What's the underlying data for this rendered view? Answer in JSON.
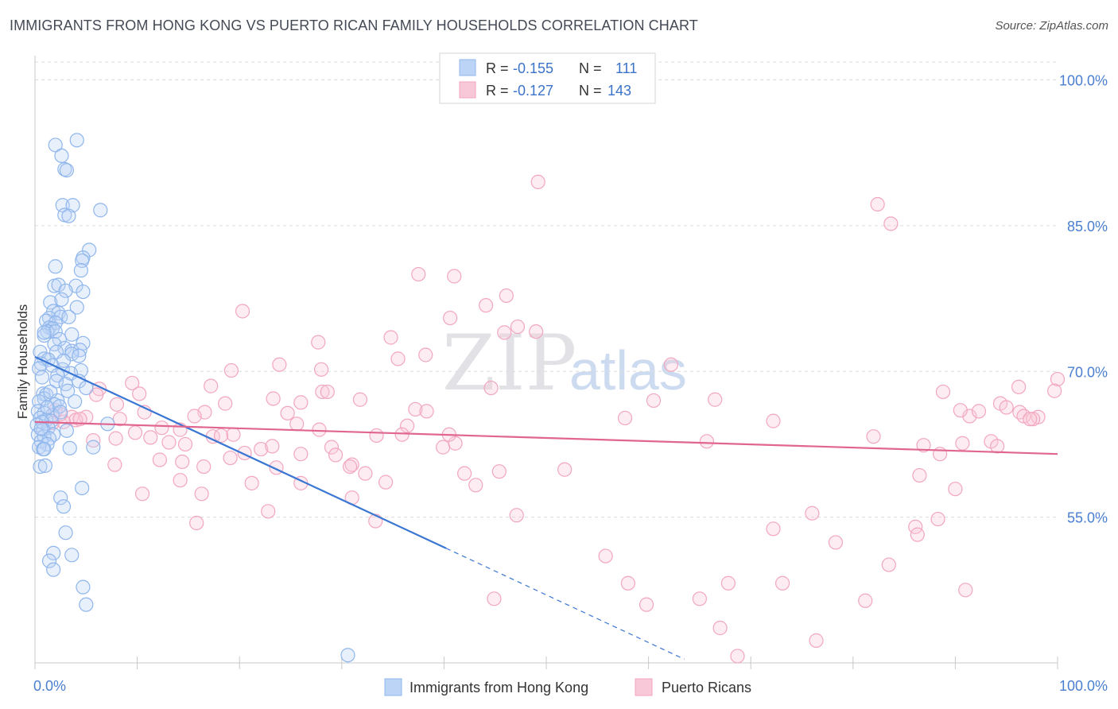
{
  "header": {
    "title": "IMMIGRANTS FROM HONG KONG VS PUERTO RICAN FAMILY HOUSEHOLDS CORRELATION CHART",
    "source": "Source: ZipAtlas.com"
  },
  "watermark": {
    "zip": "ZIP",
    "atlas": "atlas"
  },
  "legend": {
    "rows": [
      {
        "r_label": "R =",
        "r_value": "-0.155",
        "n_label": "N =",
        "n_value": "111",
        "color": "#8fb6ec"
      },
      {
        "r_label": "R =",
        "r_value": "-0.127",
        "n_label": "N =",
        "n_value": "143",
        "color": "#f2a6c0"
      }
    ]
  },
  "bottom_legend": {
    "items": [
      {
        "label": "Immigrants from Hong Kong",
        "color": "#8fb6ec"
      },
      {
        "label": "Puerto Ricans",
        "color": "#f2a6c0"
      }
    ]
  },
  "chart_data": {
    "type": "scatter",
    "ylabel": "Family Households",
    "xlabel": "",
    "xlim": [
      0,
      100
    ],
    "ylim": [
      40,
      102.5
    ],
    "x_tick_labels": [
      "0.0%",
      "100.0%"
    ],
    "y_ticks": [
      55,
      70,
      85,
      100
    ],
    "y_tick_labels": [
      "55.0%",
      "70.0%",
      "85.0%",
      "100.0%"
    ],
    "grid": true,
    "legend_position": "top-center",
    "series": [
      {
        "name": "Immigrants from Hong Kong",
        "color": "#8fb6ec",
        "line_color": "#3a76d3",
        "trend": {
          "x0": 0,
          "y0": 71.5,
          "x1": 40.2,
          "y1": 51.8,
          "dash_to_x": 63.5
        },
        "points": [
          [
            2.0,
            93.3
          ],
          [
            4.1,
            93.8
          ],
          [
            2.6,
            92.2
          ],
          [
            2.9,
            90.8
          ],
          [
            3.1,
            90.7
          ],
          [
            2.7,
            87.1
          ],
          [
            3.7,
            87.1
          ],
          [
            2.9,
            86.1
          ],
          [
            3.3,
            86.0
          ],
          [
            6.4,
            86.6
          ],
          [
            5.3,
            82.5
          ],
          [
            4.7,
            81.7
          ],
          [
            4.6,
            81.4
          ],
          [
            2.0,
            80.8
          ],
          [
            4.5,
            80.4
          ],
          [
            1.9,
            78.8
          ],
          [
            2.3,
            78.9
          ],
          [
            4.0,
            78.8
          ],
          [
            3.0,
            78.3
          ],
          [
            4.7,
            78.2
          ],
          [
            1.5,
            77.1
          ],
          [
            2.6,
            77.4
          ],
          [
            4.1,
            76.6
          ],
          [
            1.8,
            76.2
          ],
          [
            2.3,
            76.0
          ],
          [
            1.4,
            75.5
          ],
          [
            2.5,
            75.6
          ],
          [
            3.3,
            75.6
          ],
          [
            1.1,
            75.2
          ],
          [
            2.0,
            75.0
          ],
          [
            1.4,
            74.5
          ],
          [
            1.7,
            74.4
          ],
          [
            1.2,
            74.1
          ],
          [
            2.0,
            74.1
          ],
          [
            3.6,
            73.8
          ],
          [
            0.9,
            73.7
          ],
          [
            2.4,
            73.3
          ],
          [
            4.7,
            72.9
          ],
          [
            1.9,
            72.8
          ],
          [
            2.9,
            72.4
          ],
          [
            0.5,
            72.0
          ],
          [
            3.6,
            72.1
          ],
          [
            4.4,
            72.2
          ],
          [
            2.1,
            72.0
          ],
          [
            3.6,
            71.8
          ],
          [
            4.3,
            71.6
          ],
          [
            0.9,
            71.3
          ],
          [
            1.3,
            71.2
          ],
          [
            0.6,
            70.8
          ],
          [
            1.7,
            70.6
          ],
          [
            0.4,
            70.3
          ],
          [
            2.7,
            70.2
          ],
          [
            4.5,
            70.1
          ],
          [
            3.5,
            69.8
          ],
          [
            2.2,
            69.6
          ],
          [
            0.7,
            69.4
          ],
          [
            2.1,
            69.0
          ],
          [
            4.3,
            69.0
          ],
          [
            3.0,
            68.7
          ],
          [
            5.0,
            68.3
          ],
          [
            3.2,
            68.0
          ],
          [
            0.8,
            67.7
          ],
          [
            1.1,
            67.6
          ],
          [
            0.9,
            67.2
          ],
          [
            2.2,
            67.0
          ],
          [
            0.4,
            66.9
          ],
          [
            1.9,
            66.6
          ],
          [
            2.4,
            66.4
          ],
          [
            0.3,
            65.9
          ],
          [
            0.9,
            65.7
          ],
          [
            1.7,
            65.5
          ],
          [
            0.5,
            65.2
          ],
          [
            1.1,
            65.0
          ],
          [
            1.6,
            64.9
          ],
          [
            0.7,
            64.8
          ],
          [
            0.2,
            64.5
          ],
          [
            7.1,
            64.6
          ],
          [
            1.3,
            64.2
          ],
          [
            0.8,
            64.0
          ],
          [
            3.1,
            63.9
          ],
          [
            1.8,
            63.5
          ],
          [
            0.3,
            63.5
          ],
          [
            0.9,
            63.3
          ],
          [
            1.4,
            63.1
          ],
          [
            0.6,
            62.8
          ],
          [
            1.2,
            62.5
          ],
          [
            0.4,
            62.2
          ],
          [
            0.8,
            62.0
          ],
          [
            3.4,
            62.1
          ],
          [
            5.7,
            62.2
          ],
          [
            0.9,
            62.0
          ],
          [
            0.5,
            60.2
          ],
          [
            1.0,
            60.3
          ],
          [
            4.6,
            58.0
          ],
          [
            2.5,
            57.0
          ],
          [
            2.8,
            56.1
          ],
          [
            3.0,
            53.4
          ],
          [
            1.8,
            51.3
          ],
          [
            3.6,
            51.1
          ],
          [
            1.4,
            50.5
          ],
          [
            1.8,
            49.6
          ],
          [
            4.7,
            47.8
          ],
          [
            5.0,
            46.0
          ],
          [
            30.6,
            40.8
          ],
          [
            1.2,
            66.3
          ],
          [
            2.5,
            65.8
          ],
          [
            0.6,
            64.1
          ],
          [
            3.9,
            66.9
          ],
          [
            1.5,
            67.9
          ],
          [
            2.8,
            71.1
          ],
          [
            0.9,
            74.0
          ]
        ]
      },
      {
        "name": "Puerto Ricans",
        "color": "#f2a6c0",
        "line_color": "#e0668f",
        "trend": {
          "x0": 0,
          "y0": 64.8,
          "x1": 100,
          "y1": 61.5
        },
        "points": [
          [
            49.2,
            89.5
          ],
          [
            82.4,
            87.2
          ],
          [
            83.7,
            85.2
          ],
          [
            37.5,
            80.0
          ],
          [
            41.0,
            79.8
          ],
          [
            46.1,
            77.8
          ],
          [
            44.1,
            76.8
          ],
          [
            20.3,
            76.2
          ],
          [
            40.6,
            75.5
          ],
          [
            47.2,
            74.6
          ],
          [
            45.9,
            74.0
          ],
          [
            49.0,
            74.1
          ],
          [
            34.8,
            73.5
          ],
          [
            27.7,
            73.0
          ],
          [
            38.2,
            71.7
          ],
          [
            35.5,
            71.3
          ],
          [
            23.9,
            70.7
          ],
          [
            62.2,
            70.7
          ],
          [
            19.2,
            70.1
          ],
          [
            28.0,
            70.2
          ],
          [
            9.5,
            68.8
          ],
          [
            17.2,
            68.5
          ],
          [
            6.3,
            68.2
          ],
          [
            28.1,
            67.9
          ],
          [
            28.6,
            67.9
          ],
          [
            10.2,
            67.7
          ],
          [
            44.6,
            68.3
          ],
          [
            31.8,
            67.1
          ],
          [
            23.3,
            67.2
          ],
          [
            26.0,
            66.8
          ],
          [
            8.0,
            66.6
          ],
          [
            18.6,
            66.7
          ],
          [
            60.5,
            67.0
          ],
          [
            66.5,
            67.1
          ],
          [
            94.4,
            66.7
          ],
          [
            37.2,
            66.1
          ],
          [
            38.3,
            65.9
          ],
          [
            10.7,
            65.8
          ],
          [
            16.6,
            65.8
          ],
          [
            24.7,
            65.7
          ],
          [
            15.6,
            65.4
          ],
          [
            3.6,
            65.3
          ],
          [
            5.0,
            65.3
          ],
          [
            4.0,
            65.0
          ],
          [
            8.3,
            65.1
          ],
          [
            2.8,
            64.8
          ],
          [
            1.7,
            64.7
          ],
          [
            2.5,
            65.6
          ],
          [
            4.4,
            65.1
          ],
          [
            25.6,
            64.6
          ],
          [
            36.4,
            64.4
          ],
          [
            57.7,
            65.2
          ],
          [
            72.2,
            64.9
          ],
          [
            91.4,
            65.4
          ],
          [
            96.3,
            65.8
          ],
          [
            96.7,
            65.4
          ],
          [
            98.1,
            65.3
          ],
          [
            97.6,
            65.1
          ],
          [
            12.4,
            64.2
          ],
          [
            14.2,
            64.0
          ],
          [
            19.4,
            63.5
          ],
          [
            17.4,
            63.3
          ],
          [
            9.8,
            63.7
          ],
          [
            11.3,
            63.2
          ],
          [
            7.9,
            63.1
          ],
          [
            5.7,
            62.9
          ],
          [
            14.7,
            62.5
          ],
          [
            13.1,
            62.7
          ],
          [
            22.1,
            62.0
          ],
          [
            23.2,
            62.3
          ],
          [
            29.0,
            62.2
          ],
          [
            33.4,
            63.4
          ],
          [
            35.9,
            63.5
          ],
          [
            39.9,
            62.2
          ],
          [
            41.1,
            62.6
          ],
          [
            65.7,
            62.8
          ],
          [
            82.0,
            63.3
          ],
          [
            86.9,
            62.4
          ],
          [
            90.7,
            62.6
          ],
          [
            93.5,
            62.8
          ],
          [
            94.1,
            62.3
          ],
          [
            88.5,
            61.5
          ],
          [
            12.2,
            60.9
          ],
          [
            14.4,
            60.7
          ],
          [
            19.1,
            61.1
          ],
          [
            20.5,
            61.6
          ],
          [
            26.0,
            61.5
          ],
          [
            29.4,
            61.4
          ],
          [
            31.0,
            60.4
          ],
          [
            30.8,
            60.2
          ],
          [
            7.8,
            60.4
          ],
          [
            16.5,
            60.2
          ],
          [
            23.6,
            60.1
          ],
          [
            32.3,
            59.5
          ],
          [
            42.0,
            59.5
          ],
          [
            45.4,
            59.7
          ],
          [
            51.8,
            59.9
          ],
          [
            86.5,
            59.3
          ],
          [
            14.2,
            58.8
          ],
          [
            21.2,
            58.5
          ],
          [
            26.0,
            58.5
          ],
          [
            34.3,
            58.6
          ],
          [
            43.1,
            58.3
          ],
          [
            90.0,
            57.9
          ],
          [
            10.5,
            57.4
          ],
          [
            16.3,
            57.4
          ],
          [
            31.0,
            57.0
          ],
          [
            22.8,
            55.6
          ],
          [
            47.1,
            55.2
          ],
          [
            76.0,
            55.4
          ],
          [
            88.3,
            54.8
          ],
          [
            15.8,
            54.4
          ],
          [
            33.3,
            54.6
          ],
          [
            72.2,
            53.8
          ],
          [
            86.1,
            54.0
          ],
          [
            86.3,
            53.2
          ],
          [
            78.3,
            52.4
          ],
          [
            55.8,
            51.0
          ],
          [
            83.5,
            50.1
          ],
          [
            73.1,
            48.2
          ],
          [
            58.0,
            48.2
          ],
          [
            67.8,
            48.2
          ],
          [
            91.0,
            47.5
          ],
          [
            44.9,
            46.6
          ],
          [
            65.0,
            46.6
          ],
          [
            59.8,
            46.0
          ],
          [
            81.2,
            46.4
          ],
          [
            67.0,
            43.6
          ],
          [
            76.4,
            42.3
          ],
          [
            68.7,
            40.7
          ],
          [
            18.2,
            63.4
          ],
          [
            27.8,
            64.0
          ],
          [
            40.5,
            63.5
          ],
          [
            96.2,
            68.4
          ],
          [
            100.0,
            69.2
          ],
          [
            99.7,
            68.0
          ],
          [
            97.3,
            65.1
          ],
          [
            92.3,
            65.9
          ],
          [
            90.5,
            66.0
          ],
          [
            88.8,
            67.9
          ],
          [
            95.0,
            66.3
          ],
          [
            2.0,
            66.0
          ],
          [
            6.0,
            67.6
          ]
        ]
      }
    ]
  }
}
